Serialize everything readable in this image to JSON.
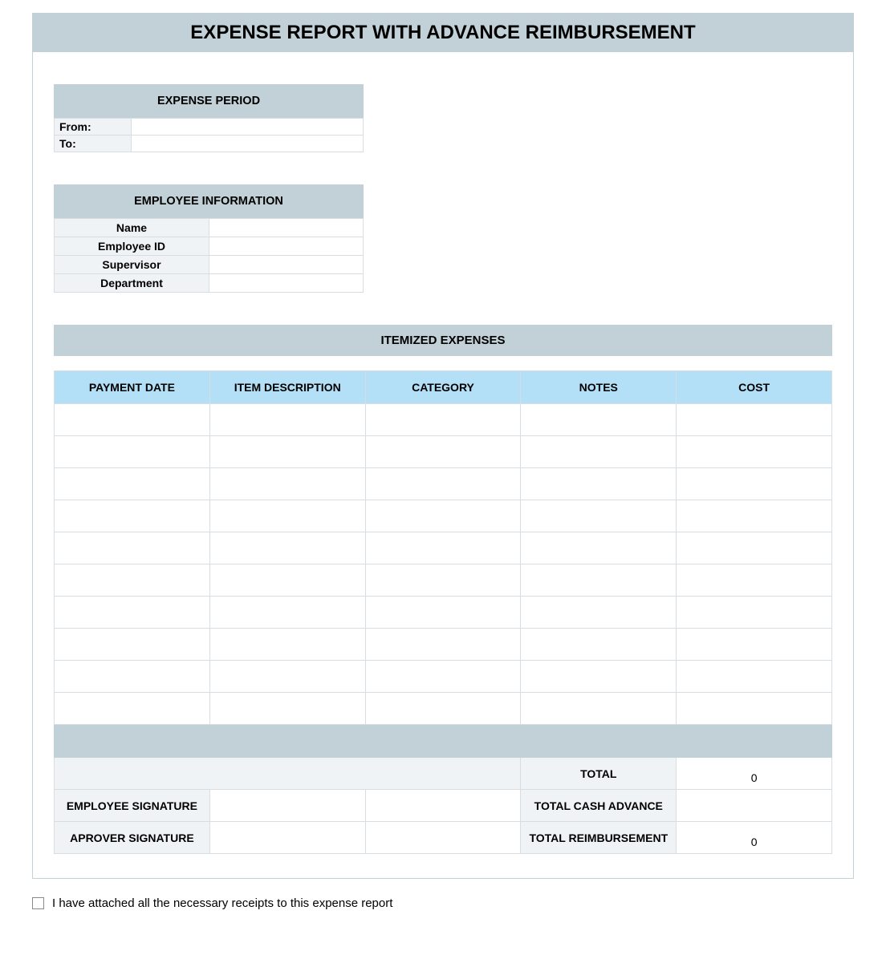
{
  "colors": {
    "header_bg": "#c2d0d8",
    "light_bg": "#f0f3f6",
    "table_header_bg": "#b3e0f7",
    "border": "#d6dde3"
  },
  "title": "EXPENSE REPORT WITH ADVANCE REIMBURSEMENT",
  "expense_period": {
    "header": "EXPENSE PERIOD",
    "from_label": "From:",
    "from_value": "",
    "to_label": "To:",
    "to_value": ""
  },
  "employee_info": {
    "header": "EMPLOYEE INFORMATION",
    "rows": [
      {
        "label": "Name",
        "value": ""
      },
      {
        "label": "Employee ID",
        "value": ""
      },
      {
        "label": "Supervisor",
        "value": ""
      },
      {
        "label": "Department",
        "value": ""
      }
    ]
  },
  "itemized": {
    "header": "ITEMIZED EXPENSES",
    "columns": [
      "PAYMENT DATE",
      "ITEM DESCRIPTION",
      "CATEGORY",
      "NOTES",
      "COST"
    ],
    "rows": [
      [
        "",
        "",
        "",
        "",
        ""
      ],
      [
        "",
        "",
        "",
        "",
        ""
      ],
      [
        "",
        "",
        "",
        "",
        ""
      ],
      [
        "",
        "",
        "",
        "",
        ""
      ],
      [
        "",
        "",
        "",
        "",
        ""
      ],
      [
        "",
        "",
        "",
        "",
        ""
      ],
      [
        "",
        "",
        "",
        "",
        ""
      ],
      [
        "",
        "",
        "",
        "",
        ""
      ],
      [
        "",
        "",
        "",
        "",
        ""
      ],
      [
        "",
        "",
        "",
        "",
        ""
      ]
    ]
  },
  "summary": {
    "total_label": "TOTAL",
    "total_value": "0",
    "cash_advance_label": "TOTAL CASH ADVANCE",
    "cash_advance_value": "",
    "reimbursement_label": "TOTAL REIMBURSEMENT",
    "reimbursement_value": "0",
    "employee_sig_label": "EMPLOYEE SIGNATURE",
    "employee_sig_value": "",
    "approver_sig_label": "APROVER SIGNATURE",
    "approver_sig_value": ""
  },
  "checkbox": {
    "checked": false,
    "label": "I have attached all the necessary receipts to this expense report"
  }
}
